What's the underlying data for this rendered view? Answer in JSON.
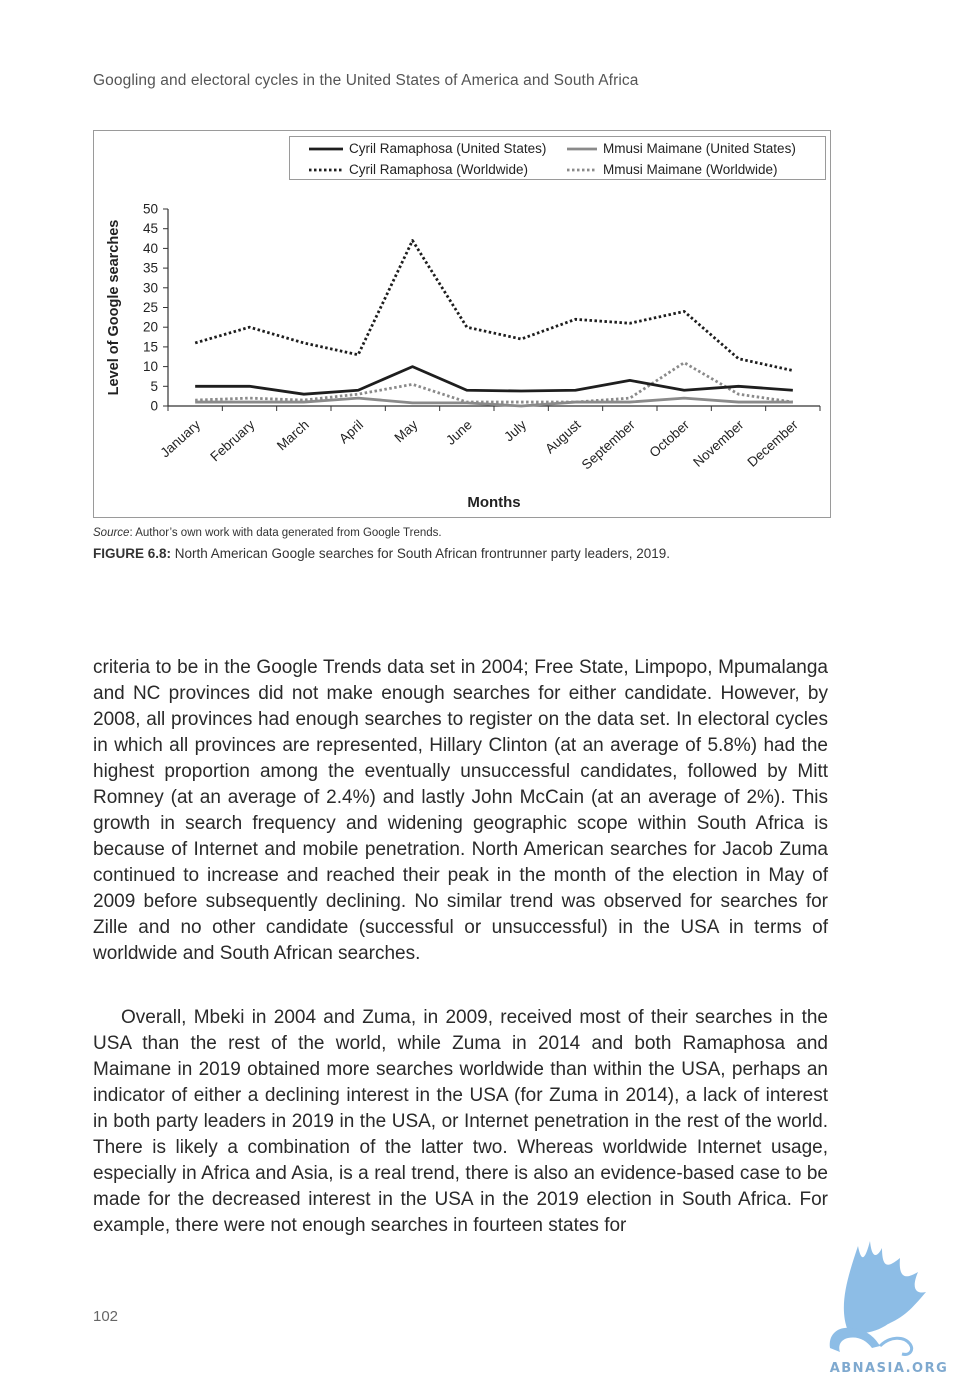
{
  "running_head": "Googling and electoral cycles in the United States of America and South Africa",
  "chart_data": {
    "type": "line",
    "categories": [
      "January",
      "February",
      "March",
      "April",
      "May",
      "June",
      "July",
      "August",
      "September",
      "October",
      "November",
      "December"
    ],
    "series": [
      {
        "name": "Cyril Ramaphosa (United States)",
        "values": [
          5,
          5,
          3,
          4,
          10,
          4,
          3.8,
          4,
          6.5,
          4,
          5,
          4
        ],
        "color": "#1e1e1e",
        "style": "solid"
      },
      {
        "name": "Cyril Ramaphosa (Worldwide)",
        "values": [
          16,
          20,
          16,
          13,
          42,
          20,
          17,
          22,
          21,
          24,
          12,
          9
        ],
        "color": "#1e1e1e",
        "style": "dotted"
      },
      {
        "name": "Mmusi Maimane (United States)",
        "values": [
          1,
          1,
          1,
          2,
          0.8,
          0.8,
          0,
          1,
          1,
          2,
          1,
          1
        ],
        "color": "#8a8a8a",
        "style": "solid"
      },
      {
        "name": "Mmusi Maimane (Worldwide)",
        "values": [
          1.5,
          2,
          1.5,
          3,
          5.5,
          1,
          1,
          1,
          2,
          11,
          3,
          1
        ],
        "color": "#8a8a8a",
        "style": "dotted"
      }
    ],
    "ylabel": "Level of Google searches",
    "xlabel": "Months",
    "ylim": [
      0,
      50
    ],
    "yticks": [
      0,
      5,
      10,
      15,
      20,
      25,
      30,
      35,
      40,
      45,
      50
    ],
    "grid": false,
    "legend_position": "top"
  },
  "source": {
    "prefix": "Source",
    "text": ": Author’s own work with data generated from Google Trends."
  },
  "caption": {
    "label": "FIGURE 6.8:",
    "text": " North American Google searches for South African frontrunner party leaders, 2019."
  },
  "paragraphs": [
    "criteria to be in the Google Trends data set in 2004; Free State, Limpopo, Mpumalanga and NC provinces did not make enough searches for either candidate. However, by 2008, all provinces had enough searches to register on the data set. In electoral cycles in which all provinces are represented, Hillary Clinton (at an average of 5.8%) had the highest proportion among the eventually unsuccessful candidates, followed by Mitt Romney (at an average of 2.4%) and lastly John McCain (at an average of 2%). This growth in search frequency and widening geographic scope within South Africa is because of Internet and mobile penetration. North American searches for Jacob Zuma continued to increase and reached their peak in the month of the election in May of 2009 before subsequently declining. No similar trend was observed for searches for Zille and no other candidate (successful or unsuccessful) in the USA in terms of worldwide and South African searches.",
    "Overall, Mbeki in 2004 and Zuma, in 2009, received most of their searches in the USA than the rest of the world, while Zuma in 2014 and both Ramaphosa and Maimane in 2019 obtained more searches worldwide than within the USA, perhaps an indicator of either a declining interest in the USA (for Zuma in 2014), a lack of interest in both party leaders in 2019 in the USA, or Internet penetration in the rest of the world. There is likely a combination of the latter two. Whereas worldwide Internet usage, especially in Africa and Asia, is a real trend, there is also an evidence-based case to be made for the decreased interest in the USA in the 2019 election in South Africa. For example, there were not enough searches in fourteen states for"
  ],
  "page_number": "102",
  "watermark": {
    "text": "ABNASIA.ORG",
    "icon": "griffin-logo-icon",
    "color": "#7fb3e0"
  }
}
